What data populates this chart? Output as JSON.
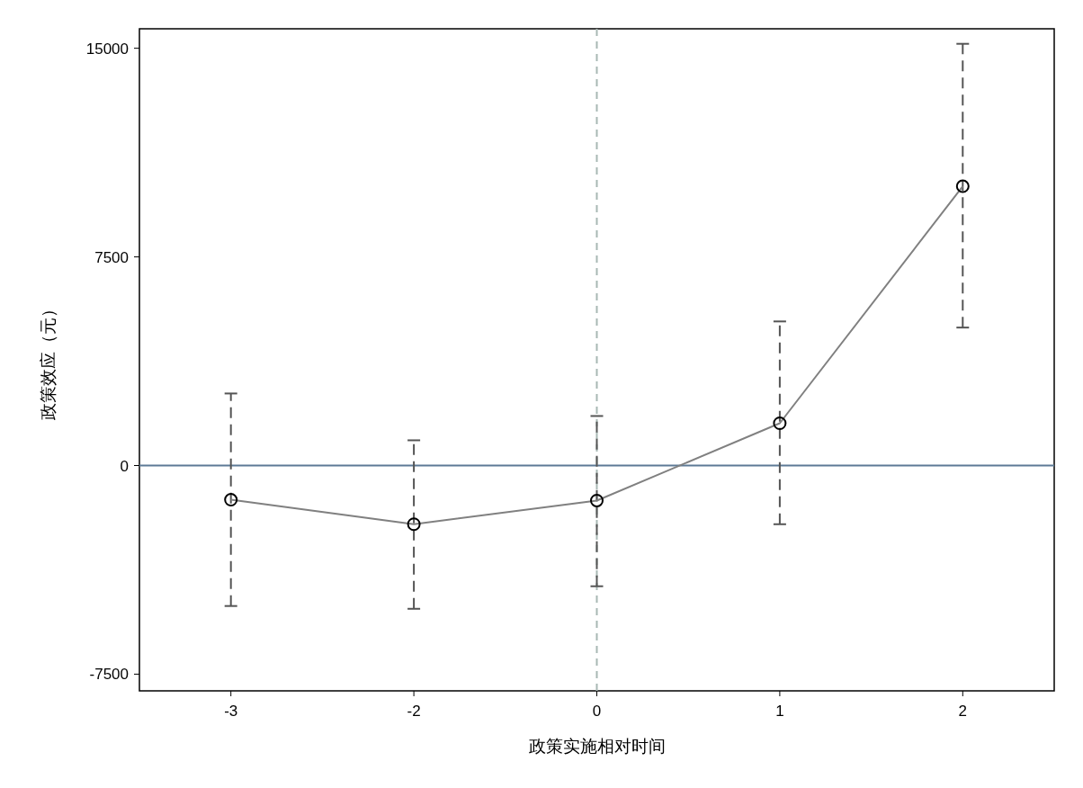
{
  "chart_data": {
    "type": "line",
    "xlabel": "政策实施相对时间",
    "ylabel": "政策效应（元）",
    "categories": [
      "-3",
      "-2",
      "0",
      "1",
      "2"
    ],
    "series": [
      {
        "color": "#808080",
        "marker": "circle",
        "values": [
          -1230,
          -2110,
          -1260,
          1520,
          10040
        ],
        "errors": [
          [
            -5050,
            2590
          ],
          [
            -5150,
            907
          ],
          [
            -4340,
            1780
          ],
          [
            -2110,
            5180
          ],
          [
            4960,
            15160
          ]
        ]
      }
    ],
    "ylim": [
      -8100,
      15700
    ],
    "yticks": [
      -7500,
      0,
      7500,
      15000
    ],
    "ref_lines": [
      {
        "axis": "y",
        "value": 0,
        "color": "#5d7a96",
        "line_style": "solid"
      },
      {
        "axis": "x",
        "value": "0",
        "color": "#a8b8b4",
        "line_style": "dashed"
      }
    ]
  }
}
